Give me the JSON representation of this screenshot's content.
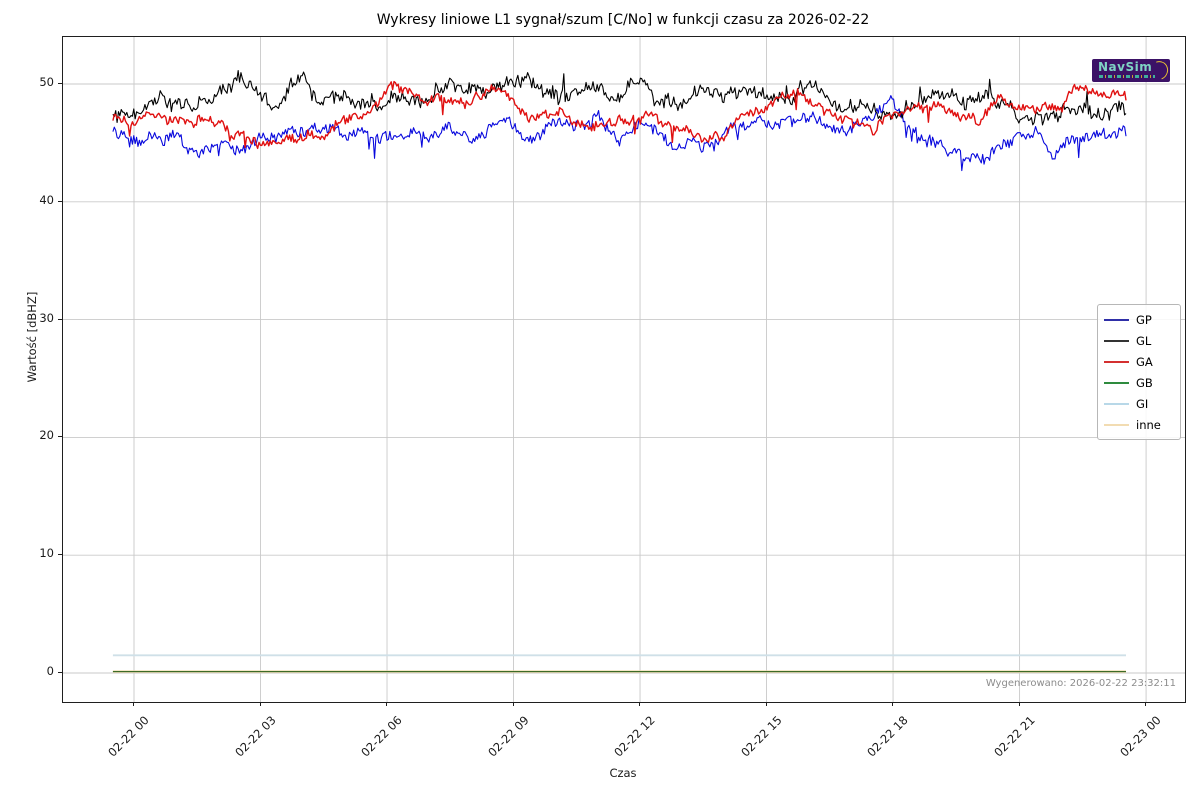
{
  "logo": {
    "text": "NavSim"
  },
  "chart_data": {
    "type": "line",
    "title": "Wykresy liniowe L1 sygnał/szum [C/No] w funkcji czasu za 2026-02-22",
    "xlabel": "Czas",
    "ylabel": "Wartość [dBHZ]",
    "generated_caption": "Wygenerowano: 2026-02-22 23:32:11",
    "grid": true,
    "legend_position": "center right",
    "ylim": [
      -2.5,
      54
    ],
    "y_ticks": [
      0,
      10,
      20,
      30,
      40,
      50
    ],
    "x_ticks": [
      {
        "hour": 0,
        "label": "02-22 00"
      },
      {
        "hour": 3,
        "label": "02-22 03"
      },
      {
        "hour": 6,
        "label": "02-22 06"
      },
      {
        "hour": 9,
        "label": "02-22 09"
      },
      {
        "hour": 12,
        "label": "02-22 12"
      },
      {
        "hour": 15,
        "label": "02-22 15"
      },
      {
        "hour": 18,
        "label": "02-22 18"
      },
      {
        "hour": 21,
        "label": "02-22 21"
      },
      {
        "hour": 24,
        "label": "02-23 00"
      }
    ],
    "x_hours_range": [
      -0.5,
      23.55
    ],
    "noise": {
      "seed": 42,
      "step_hours": 0.033
    },
    "series": [
      {
        "name": "GI",
        "color": "#cfe0e8",
        "width": 1.8,
        "noise_amp": 0,
        "constant": 1.5
      },
      {
        "name": "inne",
        "color": "#edd9a8",
        "width": 2.4,
        "noise_amp": 0,
        "constant": 0.12
      },
      {
        "name": "GB",
        "color": "#3c6b28",
        "width": 1.2,
        "noise_amp": 0,
        "constant": 0.12
      },
      {
        "name": "GP",
        "color": "#0808dd",
        "width": 1.1,
        "noise_amp": 0.42,
        "spike_dir": -1,
        "anchors": [
          [
            -0.5,
            46.3
          ],
          [
            0,
            45.4
          ],
          [
            0.5,
            45.2
          ],
          [
            1,
            44.6
          ],
          [
            1.5,
            44.0
          ],
          [
            2,
            44.9
          ],
          [
            2.5,
            43.8
          ],
          [
            3,
            46.0
          ],
          [
            3.5,
            46.3
          ],
          [
            4,
            45.9
          ],
          [
            4.5,
            46.2
          ],
          [
            5,
            45.5
          ],
          [
            5.5,
            45.2
          ],
          [
            6,
            45.6
          ],
          [
            6.5,
            46.0
          ],
          [
            7,
            45.7
          ],
          [
            7.5,
            46.1
          ],
          [
            8,
            45.4
          ],
          [
            8.5,
            46.3
          ],
          [
            9,
            46.2
          ],
          [
            9.5,
            45.4
          ],
          [
            10,
            46.5
          ],
          [
            10.5,
            46.0
          ],
          [
            11,
            46.7
          ],
          [
            11.5,
            45.1
          ],
          [
            12,
            46.6
          ],
          [
            12.5,
            45.8
          ],
          [
            13,
            44.9
          ],
          [
            13.5,
            44.3
          ],
          [
            14,
            45.6
          ],
          [
            14.5,
            46.4
          ],
          [
            15,
            46.5
          ],
          [
            15.5,
            46.6
          ],
          [
            16,
            46.8
          ],
          [
            16.5,
            46.4
          ],
          [
            17,
            46.3
          ],
          [
            17.5,
            47.2
          ],
          [
            18,
            49.2
          ],
          [
            18.3,
            46.8
          ],
          [
            18.8,
            45.6
          ],
          [
            19.5,
            44.0
          ],
          [
            20,
            43.7
          ],
          [
            20.5,
            44.9
          ],
          [
            21,
            45.7
          ],
          [
            21.5,
            45.9
          ],
          [
            21.8,
            43.8
          ],
          [
            22.3,
            45.3
          ],
          [
            23,
            45.8
          ],
          [
            23.55,
            45.9
          ]
        ]
      },
      {
        "name": "GL",
        "color": "#000000",
        "width": 1.1,
        "noise_amp": 0.5,
        "spike_dir": 1,
        "anchors": [
          [
            -0.5,
            47.0
          ],
          [
            0,
            47.6
          ],
          [
            0.5,
            48.4
          ],
          [
            1,
            48.7
          ],
          [
            1.5,
            48.1
          ],
          [
            2,
            48.4
          ],
          [
            2.5,
            50.3
          ],
          [
            3,
            48.5
          ],
          [
            3.5,
            48.1
          ],
          [
            4,
            50.6
          ],
          [
            4.3,
            49.0
          ],
          [
            4.5,
            48.6
          ],
          [
            5,
            48.9
          ],
          [
            5.5,
            48.3
          ],
          [
            6,
            48.6
          ],
          [
            6.5,
            49.1
          ],
          [
            7,
            48.6
          ],
          [
            7.5,
            49.3
          ],
          [
            8,
            49.7
          ],
          [
            8.5,
            49.1
          ],
          [
            9,
            49.3
          ],
          [
            9.5,
            49.7
          ],
          [
            10,
            48.9
          ],
          [
            10.5,
            49.2
          ],
          [
            11,
            49.7
          ],
          [
            11.5,
            49.0
          ],
          [
            12,
            50.6
          ],
          [
            12.3,
            48.9
          ],
          [
            13,
            48.3
          ],
          [
            13.5,
            49.2
          ],
          [
            14,
            48.4
          ],
          [
            14.5,
            49.0
          ],
          [
            15,
            48.7
          ],
          [
            15.5,
            48.3
          ],
          [
            16,
            50.2
          ],
          [
            16.5,
            49.2
          ],
          [
            17,
            48.4
          ],
          [
            17.5,
            48.0
          ],
          [
            18,
            47.8
          ],
          [
            18.5,
            48.2
          ],
          [
            19,
            48.7
          ],
          [
            19.5,
            48.9
          ],
          [
            20,
            48.4
          ],
          [
            20.5,
            47.7
          ],
          [
            21,
            47.2
          ],
          [
            21.5,
            47.6
          ],
          [
            22,
            47.9
          ],
          [
            22.5,
            47.3
          ],
          [
            23,
            47.7
          ],
          [
            23.55,
            47.2
          ]
        ]
      },
      {
        "name": "GA",
        "color": "#e01010",
        "width": 1.4,
        "noise_amp": 0.35,
        "spike_dir": -1,
        "anchors": [
          [
            -0.5,
            47.2
          ],
          [
            0,
            47.0
          ],
          [
            0.5,
            47.3
          ],
          [
            1,
            46.8
          ],
          [
            1.5,
            47.1
          ],
          [
            2,
            46.7
          ],
          [
            2.5,
            46.2
          ],
          [
            3,
            45.2
          ],
          [
            3.5,
            44.7
          ],
          [
            4,
            45.0
          ],
          [
            4.5,
            45.7
          ],
          [
            5,
            46.7
          ],
          [
            5.5,
            47.7
          ],
          [
            6,
            49.3
          ],
          [
            6.3,
            49.4
          ],
          [
            6.8,
            48.2
          ],
          [
            7.5,
            48.6
          ],
          [
            8,
            48.9
          ],
          [
            8.5,
            49.6
          ],
          [
            9,
            48.4
          ],
          [
            9.5,
            47.9
          ],
          [
            10,
            48.3
          ],
          [
            10.5,
            46.9
          ],
          [
            11,
            46.5
          ],
          [
            11.5,
            46.8
          ],
          [
            12,
            47.3
          ],
          [
            12.5,
            46.6
          ],
          [
            13,
            46.0
          ],
          [
            13.5,
            45.6
          ],
          [
            14,
            45.9
          ],
          [
            14.5,
            47.4
          ],
          [
            15,
            48.3
          ],
          [
            15.5,
            48.6
          ],
          [
            16,
            48.2
          ],
          [
            16.5,
            47.3
          ],
          [
            17,
            46.8
          ],
          [
            17.5,
            46.4
          ],
          [
            18,
            47.4
          ],
          [
            18.5,
            47.7
          ],
          [
            19,
            47.9
          ],
          [
            19.5,
            47.4
          ],
          [
            20,
            46.7
          ],
          [
            20.5,
            49.3
          ],
          [
            21,
            48.8
          ],
          [
            21.5,
            48.3
          ],
          [
            22,
            47.4
          ],
          [
            22.3,
            49.4
          ],
          [
            23,
            48.8
          ],
          [
            23.55,
            48.7
          ]
        ]
      }
    ],
    "legend_order": [
      "GP",
      "GL",
      "GA",
      "GB",
      "GI",
      "inne"
    ],
    "legend_colors": {
      "GP": "#2f2fa8",
      "GL": "#333333",
      "GA": "#d43030",
      "GB": "#2e8b3e",
      "GI": "#b8d8e8",
      "inne": "#f2dcb2"
    }
  }
}
